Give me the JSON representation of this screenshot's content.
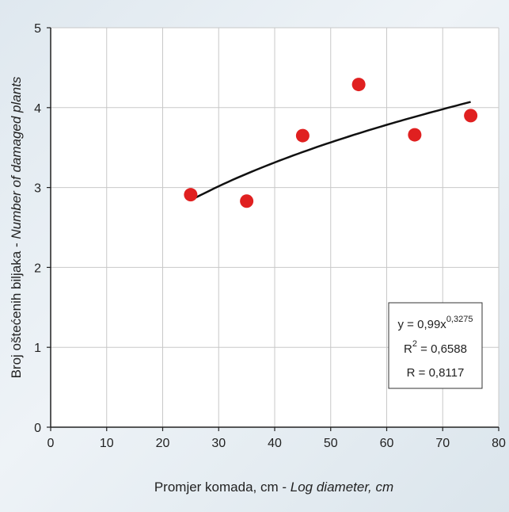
{
  "chart_data": {
    "type": "scatter",
    "xlabel": {
      "local": "Promjer komada, cm - ",
      "english": "Log diameter, cm"
    },
    "ylabel": {
      "local": "Broj oštećenih biljaka - ",
      "english": "Number of damaged plants"
    },
    "xlim": [
      0,
      80
    ],
    "ylim": [
      0,
      5
    ],
    "xticks": [
      0,
      10,
      20,
      30,
      40,
      50,
      60,
      70,
      80
    ],
    "yticks": [
      0,
      1,
      2,
      3,
      4,
      5
    ],
    "grid": true,
    "points": [
      {
        "x": 25,
        "y": 2.91
      },
      {
        "x": 35,
        "y": 2.83
      },
      {
        "x": 45,
        "y": 3.65
      },
      {
        "x": 55,
        "y": 4.29
      },
      {
        "x": 65,
        "y": 3.66
      },
      {
        "x": 75,
        "y": 3.9
      }
    ],
    "trendline": {
      "type": "power",
      "coefficient": 0.99,
      "exponent": 0.3275,
      "x_range": [
        25,
        75
      ]
    },
    "annotation": {
      "equation_base": "y = 0,99x",
      "equation_exponent": "0,3275",
      "r2_prefix": "R",
      "r2_sup": "2",
      "r2_value": " = 0,6588",
      "r_text": "R = 0,8117"
    },
    "colors": {
      "points": "#e02020",
      "trendline": "#111111",
      "grid": "#c8c8c8",
      "plot_bg": "#ffffff"
    }
  }
}
